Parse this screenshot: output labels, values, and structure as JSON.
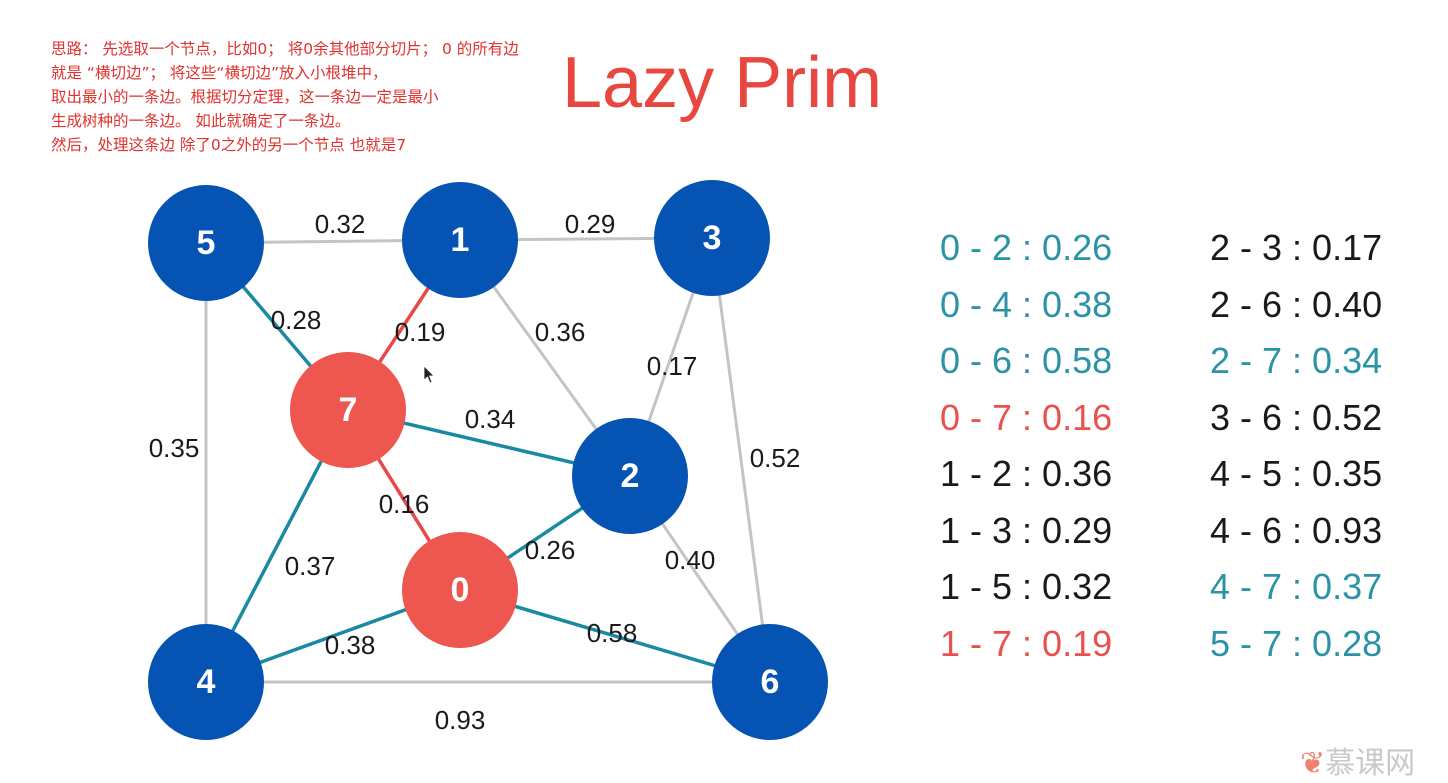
{
  "notes": {
    "lines": [
      "思路： 先选取一个节点，比如0； 将0余其他部分切片； 0 的所有边",
      "就是 “横切边”； 将这些“横切边”放入小根堆中，",
      "取出最小的一条边。根据切分定理，这一条边一定是最小",
      "生成树种的一条边。 如此就确定了一条边。",
      "然后，处理这条边 除了0之外的另一个节点 也就是7"
    ]
  },
  "title": "Lazy Prim",
  "colors": {
    "node_blue": "#0554b4",
    "node_red": "#ee5650",
    "edge_gray": "#c4c4c4",
    "edge_teal": "#1a8aa2",
    "edge_red": "#e8484a",
    "text_teal": "#2b93a6",
    "text_red": "#e8514e",
    "text_black": "#1a1a1a",
    "notes_red": "#e0322f"
  },
  "graph": {
    "nodes": [
      {
        "id": "0",
        "label": "0",
        "state": "visited"
      },
      {
        "id": "1",
        "label": "1",
        "state": "unvisited"
      },
      {
        "id": "2",
        "label": "2",
        "state": "unvisited"
      },
      {
        "id": "3",
        "label": "3",
        "state": "unvisited"
      },
      {
        "id": "4",
        "label": "4",
        "state": "unvisited"
      },
      {
        "id": "5",
        "label": "5",
        "state": "unvisited"
      },
      {
        "id": "6",
        "label": "6",
        "state": "unvisited"
      },
      {
        "id": "7",
        "label": "7",
        "state": "visited"
      }
    ],
    "edges": [
      {
        "from": "5",
        "to": "1",
        "label": "0.32",
        "state": "normal"
      },
      {
        "from": "1",
        "to": "3",
        "label": "0.29",
        "state": "normal"
      },
      {
        "from": "5",
        "to": "7",
        "label": "0.28",
        "state": "crossing"
      },
      {
        "from": "1",
        "to": "7",
        "label": "0.19",
        "state": "selected"
      },
      {
        "from": "1",
        "to": "2",
        "label": "0.36",
        "state": "normal"
      },
      {
        "from": "3",
        "to": "2",
        "label": "0.17",
        "state": "normal"
      },
      {
        "from": "5",
        "to": "4",
        "label": "0.35",
        "state": "normal"
      },
      {
        "from": "7",
        "to": "2",
        "label": "0.34",
        "state": "crossing"
      },
      {
        "from": "3",
        "to": "6",
        "label": "0.52",
        "state": "normal"
      },
      {
        "from": "7",
        "to": "0",
        "label": "0.16",
        "state": "selected"
      },
      {
        "from": "0",
        "to": "2",
        "label": "0.26",
        "state": "crossing"
      },
      {
        "from": "7",
        "to": "4",
        "label": "0.37",
        "state": "crossing"
      },
      {
        "from": "2",
        "to": "6",
        "label": "0.40",
        "state": "normal"
      },
      {
        "from": "0",
        "to": "6",
        "label": "0.58",
        "state": "crossing"
      },
      {
        "from": "0",
        "to": "4",
        "label": "0.38",
        "state": "crossing"
      },
      {
        "from": "4",
        "to": "6",
        "label": "0.93",
        "state": "normal"
      }
    ]
  },
  "edge_list": {
    "left": [
      {
        "text": "0 - 2 : 0.26",
        "state": "crossing"
      },
      {
        "text": "0 - 4 : 0.38",
        "state": "crossing"
      },
      {
        "text": "0 - 6 : 0.58",
        "state": "crossing"
      },
      {
        "text": "0 - 7 : 0.16",
        "state": "selected"
      },
      {
        "text": "1 - 2 : 0.36",
        "state": "normal"
      },
      {
        "text": "1 - 3 : 0.29",
        "state": "normal"
      },
      {
        "text": "1 - 5 : 0.32",
        "state": "normal"
      },
      {
        "text": "1 - 7 : 0.19",
        "state": "selected"
      }
    ],
    "right": [
      {
        "text": "2 - 3 : 0.17",
        "state": "normal"
      },
      {
        "text": "2 - 6 : 0.40",
        "state": "normal"
      },
      {
        "text": "2 - 7 : 0.34",
        "state": "crossing"
      },
      {
        "text": "3 - 6 : 0.52",
        "state": "normal"
      },
      {
        "text": "4 - 5 : 0.35",
        "state": "normal"
      },
      {
        "text": "4 - 6 : 0.93",
        "state": "normal"
      },
      {
        "text": "4 - 7 : 0.37",
        "state": "crossing"
      },
      {
        "text": "5 - 7 : 0.28",
        "state": "crossing"
      }
    ]
  },
  "watermark": {
    "icon": "flame-icon",
    "text": "慕课网"
  }
}
